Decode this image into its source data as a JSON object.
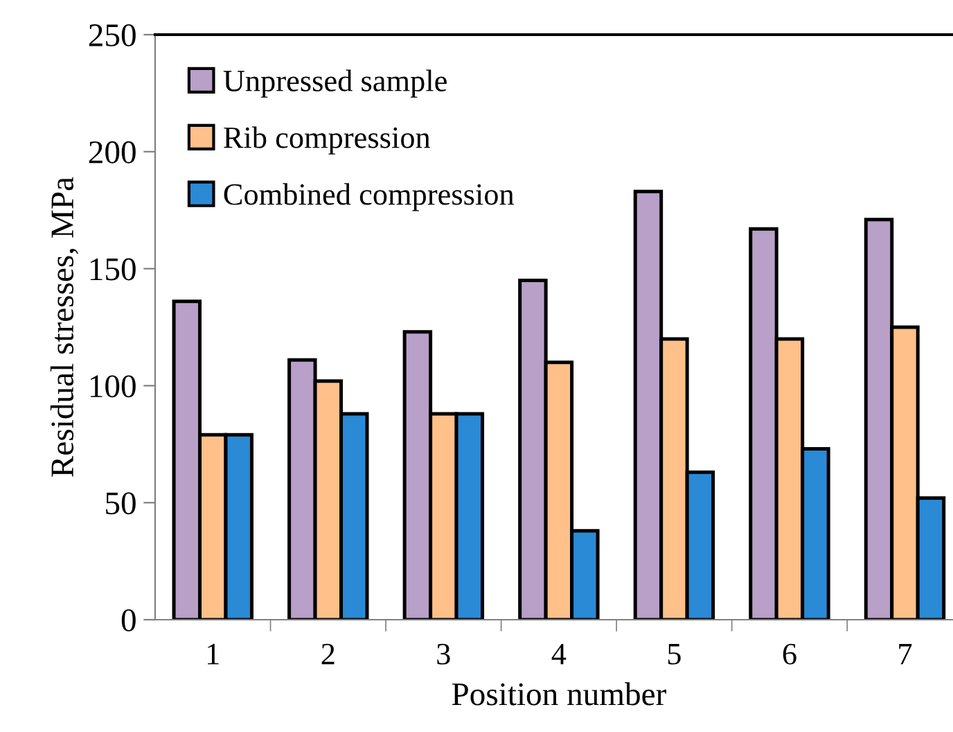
{
  "chart_data": {
    "type": "bar",
    "xlabel": "Position number",
    "ylabel": "Residual stresses, MPa",
    "categories": [
      "1",
      "2",
      "3",
      "4",
      "5",
      "6",
      "7"
    ],
    "series": [
      {
        "name": "Unpressed sample",
        "color": "#b8a0c8",
        "values": [
          136,
          111,
          123,
          145,
          183,
          167,
          171
        ]
      },
      {
        "name": "Rib compression",
        "color": "#ffc08a",
        "values": [
          79,
          102,
          88,
          110,
          120,
          120,
          125
        ]
      },
      {
        "name": "Combined compression",
        "color": "#2a8ad6",
        "values": [
          79,
          88,
          88,
          38,
          63,
          73,
          52
        ]
      }
    ],
    "ylim": [
      0,
      250
    ],
    "yticks": [
      0,
      50,
      100,
      150,
      200,
      250
    ],
    "grid": false,
    "legend": "top left"
  }
}
